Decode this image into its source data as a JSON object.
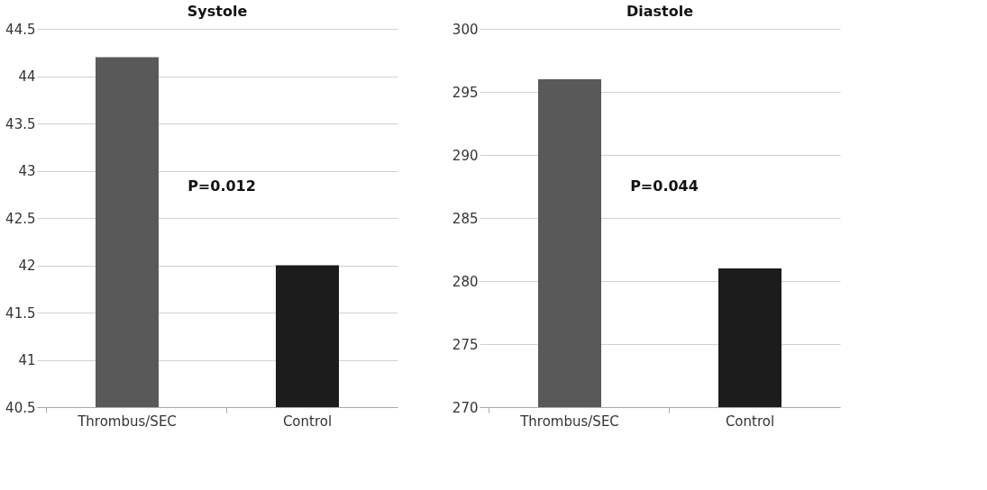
{
  "chart_data": [
    {
      "type": "bar",
      "title": "Systole",
      "categories": [
        "Thrombus/SEC",
        "Control"
      ],
      "values": [
        44.2,
        42.0
      ],
      "colors": [
        "#595959",
        "#1c1c1c"
      ],
      "ylim": [
        40.5,
        44.5
      ],
      "yticks": [
        40.5,
        41,
        41.5,
        42,
        42.5,
        43,
        43.5,
        44,
        44.5
      ],
      "grid": "y",
      "annotations": [
        "P=0.012"
      ]
    },
    {
      "type": "bar",
      "title": "Diastole",
      "categories": [
        "Thrombus/SEC",
        "Control"
      ],
      "values": [
        296,
        281
      ],
      "colors": [
        "#595959",
        "#1c1c1c"
      ],
      "ylim": [
        270,
        300
      ],
      "yticks": [
        270,
        275,
        280,
        285,
        290,
        295,
        300
      ],
      "grid": "y",
      "annotations": [
        "P=0.044"
      ]
    }
  ]
}
